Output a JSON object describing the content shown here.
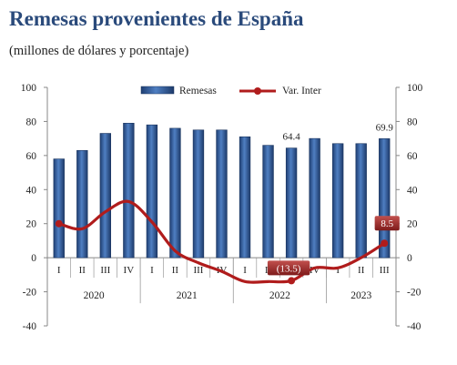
{
  "chart_data": {
    "type": "bar+line",
    "title": "Remesas provenientes de España",
    "subtitle": "(millones de dólares y porcentaje)",
    "quarters": [
      "I",
      "II",
      "III",
      "IV",
      "I",
      "II",
      "III",
      "IV",
      "I",
      "II",
      "III",
      "IV",
      "I",
      "II",
      "III"
    ],
    "years": [
      "2020",
      "2021",
      "2022",
      "2023"
    ],
    "series": [
      {
        "name": "Remesas",
        "type": "bar",
        "axis": "left",
        "color": "#2f5d9f",
        "values": [
          58,
          63,
          73,
          79,
          78,
          76,
          75,
          75,
          71,
          66,
          64.4,
          70,
          67,
          67,
          69.9
        ]
      },
      {
        "name": "Var. Inter",
        "type": "line",
        "axis": "right",
        "color": "#b01c1c",
        "values": [
          20,
          17,
          27,
          33,
          21,
          4,
          -3,
          -8,
          -14,
          -14,
          -13.5,
          -6,
          -6,
          0,
          8.5
        ]
      }
    ],
    "data_labels": [
      {
        "series": "Remesas",
        "index": 10,
        "text": "64.4"
      },
      {
        "series": "Remesas",
        "index": 14,
        "text": "69.9"
      },
      {
        "series": "Var. Inter",
        "index": 10,
        "text": "(13.5)"
      },
      {
        "series": "Var. Inter",
        "index": 14,
        "text": "8.5"
      }
    ],
    "yleft": {
      "min": -40,
      "max": 100,
      "step": 20,
      "ticks": [
        "-40",
        "-20",
        "0",
        "20",
        "40",
        "60",
        "80",
        "100"
      ]
    },
    "yright": {
      "min": -40,
      "max": 100,
      "step": 20,
      "ticks": [
        "-40",
        "-20",
        "0",
        "20",
        "40",
        "60",
        "80",
        "100"
      ]
    },
    "legend": {
      "position": "top",
      "items": [
        "Remesas",
        "Var. Inter"
      ]
    },
    "grid": false
  }
}
